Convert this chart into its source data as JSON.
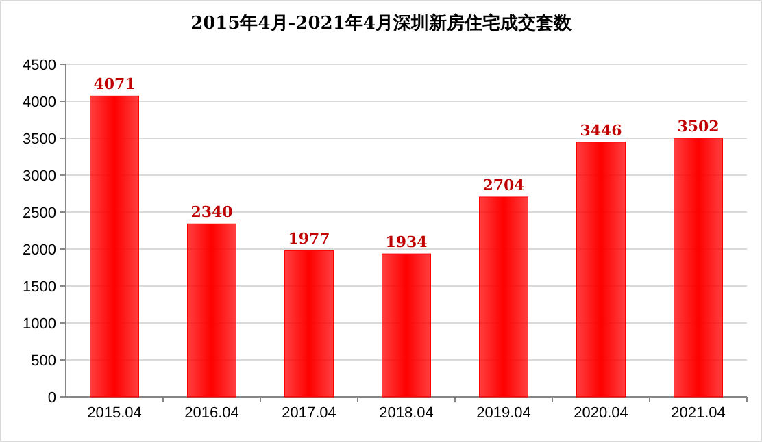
{
  "chart_data": {
    "type": "bar",
    "title": "2015年4月-2021年4月深圳新房住宅成交套数",
    "categories": [
      "2015.04",
      "2016.04",
      "2017.04",
      "2018.04",
      "2019.04",
      "2020.04",
      "2021.04"
    ],
    "values": [
      4071,
      2340,
      1977,
      1934,
      2704,
      3446,
      3502
    ],
    "color": "#ff0000",
    "ylim": [
      0,
      4500
    ],
    "yticks": [
      0,
      500,
      1000,
      1500,
      2000,
      2500,
      3000,
      3500,
      4000,
      4500
    ],
    "grid": "y",
    "data_labels": true
  }
}
